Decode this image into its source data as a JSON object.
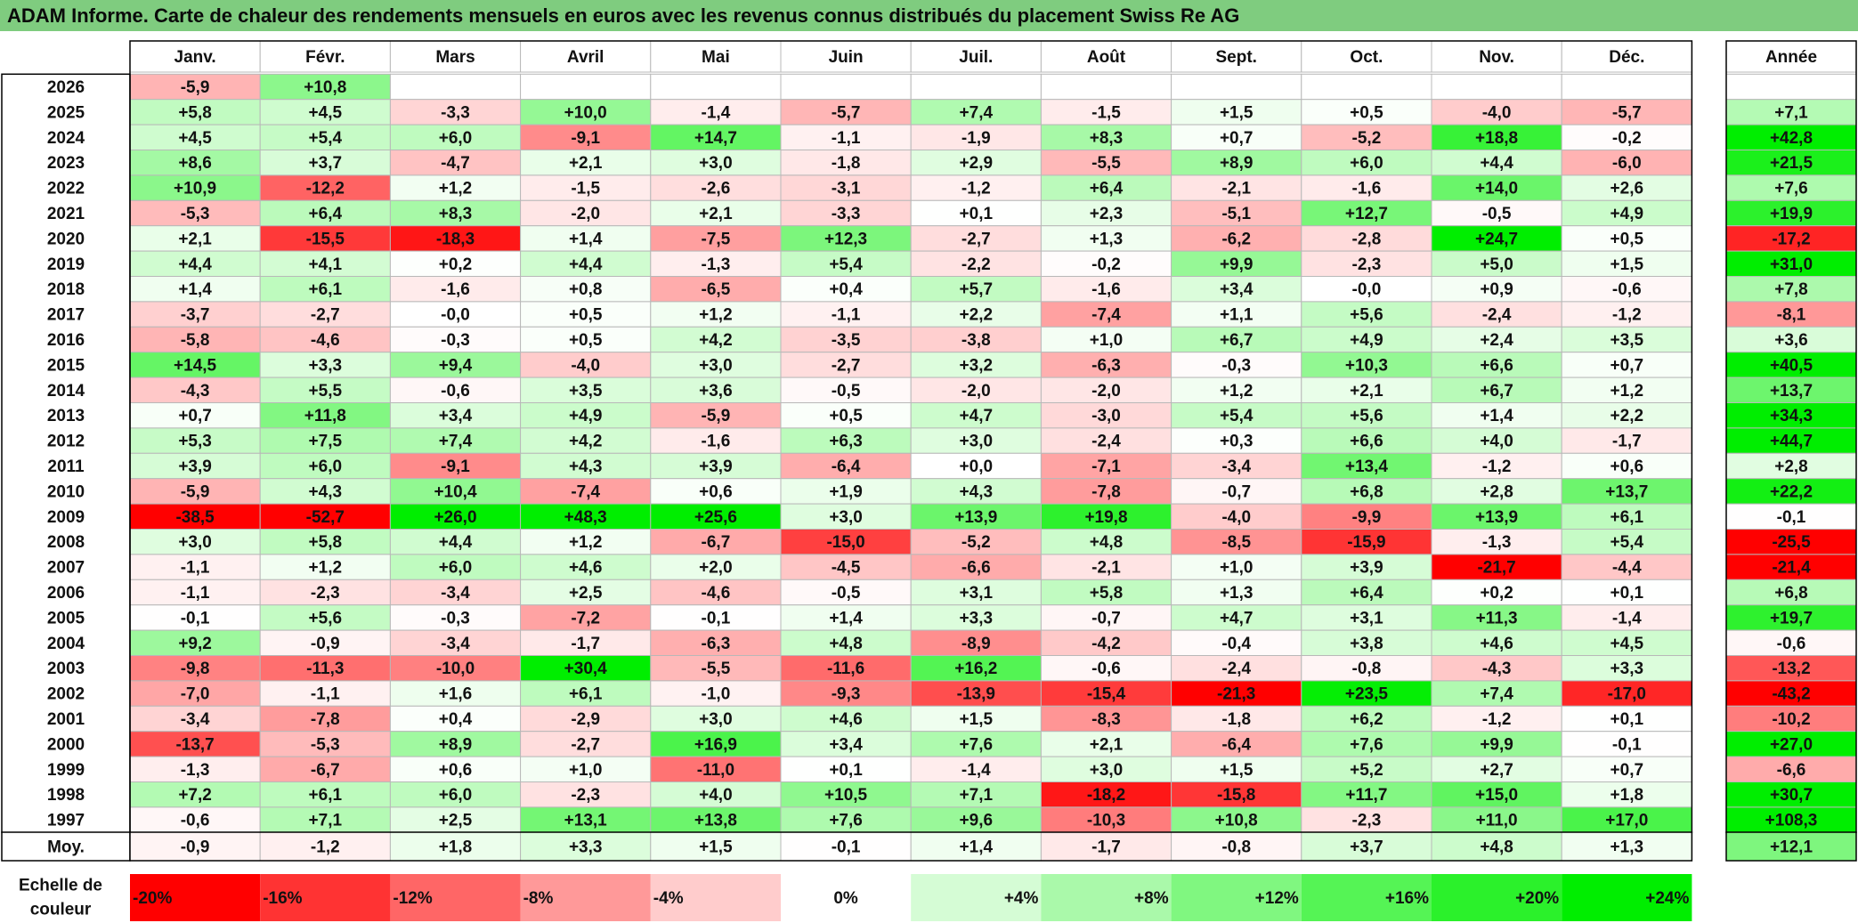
{
  "title": "ADAM Informe. Carte de chaleur des rendements mensuels en euros avec les revenus connus distribués du placement Swiss Re AG",
  "chart_data": {
    "type": "heatmap",
    "title": "ADAM Informe. Carte de chaleur des rendements mensuels en euros avec les revenus connus distribués du placement Swiss Re AG",
    "months": [
      "Janv.",
      "Févr.",
      "Mars",
      "Avril",
      "Mai",
      "Juin",
      "Juil.",
      "Août",
      "Sept.",
      "Oct.",
      "Nov.",
      "Déc."
    ],
    "year_label": "Année",
    "rows": [
      {
        "year": "2026",
        "values": [
          "-5,9",
          "+10,8",
          "",
          "",
          "",
          "",
          "",
          "",
          "",
          "",
          "",
          ""
        ],
        "annual": ""
      },
      {
        "year": "2025",
        "values": [
          "+5,8",
          "+4,5",
          "-3,3",
          "+10,0",
          "-1,4",
          "-5,7",
          "+7,4",
          "-1,5",
          "+1,5",
          "+0,5",
          "-4,0",
          "-5,7"
        ],
        "annual": "+7,1"
      },
      {
        "year": "2024",
        "values": [
          "+4,5",
          "+5,4",
          "+6,0",
          "-9,1",
          "+14,7",
          "-1,1",
          "-1,9",
          "+8,3",
          "+0,7",
          "-5,2",
          "+18,8",
          "-0,2"
        ],
        "annual": "+42,8"
      },
      {
        "year": "2023",
        "values": [
          "+8,6",
          "+3,7",
          "-4,7",
          "+2,1",
          "+3,0",
          "-1,8",
          "+2,9",
          "-5,5",
          "+8,9",
          "+6,0",
          "+4,4",
          "-6,0"
        ],
        "annual": "+21,5"
      },
      {
        "year": "2022",
        "values": [
          "+10,9",
          "-12,2",
          "+1,2",
          "-1,5",
          "-2,6",
          "-3,1",
          "-1,2",
          "+6,4",
          "-2,1",
          "-1,6",
          "+14,0",
          "+2,6"
        ],
        "annual": "+7,6"
      },
      {
        "year": "2021",
        "values": [
          "-5,3",
          "+6,4",
          "+8,3",
          "-2,0",
          "+2,1",
          "-3,3",
          "+0,1",
          "+2,3",
          "-5,1",
          "+12,7",
          "-0,5",
          "+4,9"
        ],
        "annual": "+19,9"
      },
      {
        "year": "2020",
        "values": [
          "+2,1",
          "-15,5",
          "-18,3",
          "+1,4",
          "-7,5",
          "+12,3",
          "-2,7",
          "+1,3",
          "-6,2",
          "-2,8",
          "+24,7",
          "+0,5"
        ],
        "annual": "-17,2"
      },
      {
        "year": "2019",
        "values": [
          "+4,4",
          "+4,1",
          "+0,2",
          "+4,4",
          "-1,3",
          "+5,4",
          "-2,2",
          "-0,2",
          "+9,9",
          "-2,3",
          "+5,0",
          "+1,5"
        ],
        "annual": "+31,0"
      },
      {
        "year": "2018",
        "values": [
          "+1,4",
          "+6,1",
          "-1,6",
          "+0,8",
          "-6,5",
          "+0,4",
          "+5,7",
          "-1,6",
          "+3,4",
          "-0,0",
          "+0,9",
          "-0,6"
        ],
        "annual": "+7,8"
      },
      {
        "year": "2017",
        "values": [
          "-3,7",
          "-2,7",
          "-0,0",
          "+0,5",
          "+1,2",
          "-1,1",
          "+2,2",
          "-7,4",
          "+1,1",
          "+5,6",
          "-2,4",
          "-1,2"
        ],
        "annual": "-8,1"
      },
      {
        "year": "2016",
        "values": [
          "-5,8",
          "-4,6",
          "-0,3",
          "+0,5",
          "+4,2",
          "-3,5",
          "-3,8",
          "+1,0",
          "+6,7",
          "+4,9",
          "+2,4",
          "+3,5"
        ],
        "annual": "+3,6"
      },
      {
        "year": "2015",
        "values": [
          "+14,5",
          "+3,3",
          "+9,4",
          "-4,0",
          "+3,0",
          "-2,7",
          "+3,2",
          "-6,3",
          "-0,3",
          "+10,3",
          "+6,6",
          "+0,7"
        ],
        "annual": "+40,5"
      },
      {
        "year": "2014",
        "values": [
          "-4,3",
          "+5,5",
          "-0,6",
          "+3,5",
          "+3,6",
          "-0,5",
          "-2,0",
          "-2,0",
          "+1,2",
          "+2,1",
          "+6,7",
          "+1,2"
        ],
        "annual": "+13,7"
      },
      {
        "year": "2013",
        "values": [
          "+0,7",
          "+11,8",
          "+3,4",
          "+4,9",
          "-5,9",
          "+0,5",
          "+4,7",
          "-3,0",
          "+5,4",
          "+5,6",
          "+1,4",
          "+2,2"
        ],
        "annual": "+34,3"
      },
      {
        "year": "2012",
        "values": [
          "+5,3",
          "+7,5",
          "+7,4",
          "+4,2",
          "-1,6",
          "+6,3",
          "+3,0",
          "-2,4",
          "+0,3",
          "+6,6",
          "+4,0",
          "-1,7"
        ],
        "annual": "+44,7"
      },
      {
        "year": "2011",
        "values": [
          "+3,9",
          "+6,0",
          "-9,1",
          "+4,3",
          "+3,9",
          "-6,4",
          "+0,0",
          "-7,1",
          "-3,4",
          "+13,4",
          "-1,2",
          "+0,6"
        ],
        "annual": "+2,8"
      },
      {
        "year": "2010",
        "values": [
          "-5,9",
          "+4,3",
          "+10,4",
          "-7,4",
          "+0,6",
          "+1,9",
          "+4,3",
          "-7,8",
          "-0,7",
          "+6,8",
          "+2,8",
          "+13,7"
        ],
        "annual": "+22,2"
      },
      {
        "year": "2009",
        "values": [
          "-38,5",
          "-52,7",
          "+26,0",
          "+48,3",
          "+25,6",
          "+3,0",
          "+13,9",
          "+19,8",
          "-4,0",
          "-9,9",
          "+13,9",
          "+6,1"
        ],
        "annual": "-0,1"
      },
      {
        "year": "2008",
        "values": [
          "+3,0",
          "+5,8",
          "+4,4",
          "+1,2",
          "-6,7",
          "-15,0",
          "-5,2",
          "+4,8",
          "-8,5",
          "-15,9",
          "-1,3",
          "+5,4"
        ],
        "annual": "-25,5"
      },
      {
        "year": "2007",
        "values": [
          "-1,1",
          "+1,2",
          "+6,0",
          "+4,6",
          "+2,0",
          "-4,5",
          "-6,6",
          "-2,1",
          "+1,0",
          "+3,9",
          "-21,7",
          "-4,4"
        ],
        "annual": "-21,4"
      },
      {
        "year": "2006",
        "values": [
          "-1,1",
          "-2,3",
          "-3,4",
          "+2,5",
          "-4,6",
          "-0,5",
          "+3,1",
          "+5,8",
          "+1,3",
          "+6,4",
          "+0,2",
          "+0,1"
        ],
        "annual": "+6,8"
      },
      {
        "year": "2005",
        "values": [
          "-0,1",
          "+5,6",
          "-0,3",
          "-7,2",
          "-0,1",
          "+1,4",
          "+3,3",
          "-0,7",
          "+4,7",
          "+3,1",
          "+11,3",
          "-1,4"
        ],
        "annual": "+19,7"
      },
      {
        "year": "2004",
        "values": [
          "+9,2",
          "-0,9",
          "-3,4",
          "-1,7",
          "-6,3",
          "+4,8",
          "-8,9",
          "-4,2",
          "-0,4",
          "+3,8",
          "+4,6",
          "+4,5"
        ],
        "annual": "-0,6"
      },
      {
        "year": "2003",
        "values": [
          "-9,8",
          "-11,3",
          "-10,0",
          "+30,4",
          "-5,5",
          "-11,6",
          "+16,2",
          "-0,6",
          "-2,4",
          "-0,8",
          "-4,3",
          "+3,3"
        ],
        "annual": "-13,2"
      },
      {
        "year": "2002",
        "values": [
          "-7,0",
          "-1,1",
          "+1,6",
          "+6,1",
          "-1,0",
          "-9,3",
          "-13,9",
          "-15,4",
          "-21,3",
          "+23,5",
          "+7,4",
          "-17,0"
        ],
        "annual": "-43,2"
      },
      {
        "year": "2001",
        "values": [
          "-3,4",
          "-7,8",
          "+0,4",
          "-2,9",
          "+3,0",
          "+4,6",
          "+1,5",
          "-8,3",
          "-1,8",
          "+6,2",
          "-1,2",
          "+0,1"
        ],
        "annual": "-10,2"
      },
      {
        "year": "2000",
        "values": [
          "-13,7",
          "-5,3",
          "+8,9",
          "-2,7",
          "+16,9",
          "+3,4",
          "+7,6",
          "+2,1",
          "-6,4",
          "+7,6",
          "+9,9",
          "-0,1"
        ],
        "annual": "+27,0"
      },
      {
        "year": "1999",
        "values": [
          "-1,3",
          "-6,7",
          "+0,6",
          "+1,0",
          "-11,0",
          "+0,1",
          "-1,4",
          "+3,0",
          "+1,5",
          "+5,2",
          "+2,7",
          "+0,7"
        ],
        "annual": "-6,6"
      },
      {
        "year": "1998",
        "values": [
          "+7,2",
          "+6,1",
          "+6,0",
          "-2,3",
          "+4,0",
          "+10,5",
          "+7,1",
          "-18,2",
          "-15,8",
          "+11,7",
          "+15,0",
          "+1,8"
        ],
        "annual": "+30,7"
      },
      {
        "year": "1997",
        "values": [
          "-0,6",
          "+7,1",
          "+2,5",
          "+13,1",
          "+13,8",
          "+7,6",
          "+9,6",
          "-10,3",
          "+10,8",
          "-2,3",
          "+11,0",
          "+17,0"
        ],
        "annual": "+108,3"
      }
    ],
    "average": {
      "label": "Moy.",
      "values": [
        "-0,9",
        "-1,2",
        "+1,8",
        "+3,3",
        "+1,5",
        "-0,1",
        "+1,4",
        "-1,7",
        "-0,8",
        "+3,7",
        "+4,8",
        "+1,3"
      ],
      "annual": "+12,1"
    },
    "scale": {
      "label_line1": "Echelle de",
      "label_line2": "couleur",
      "steps": [
        {
          "label": "-20%",
          "value": -20
        },
        {
          "label": "-16%",
          "value": -16
        },
        {
          "label": "-12%",
          "value": -12
        },
        {
          "label": "-8%",
          "value": -8
        },
        {
          "label": "-4%",
          "value": -4
        },
        {
          "label": "0%",
          "value": 0
        },
        {
          "label": "+4%",
          "value": 4
        },
        {
          "label": "+8%",
          "value": 8
        },
        {
          "label": "+12%",
          "value": 12
        },
        {
          "label": "+16%",
          "value": 16
        },
        {
          "label": "+20%",
          "value": 20
        },
        {
          "label": "+24%",
          "value": 24
        }
      ]
    },
    "colors": {
      "negative": "#ff0000",
      "neutral": "#ffffff",
      "positive": "#00ee00",
      "title_bg": "#7fcc7f",
      "grid": "#b8b8b8"
    }
  }
}
